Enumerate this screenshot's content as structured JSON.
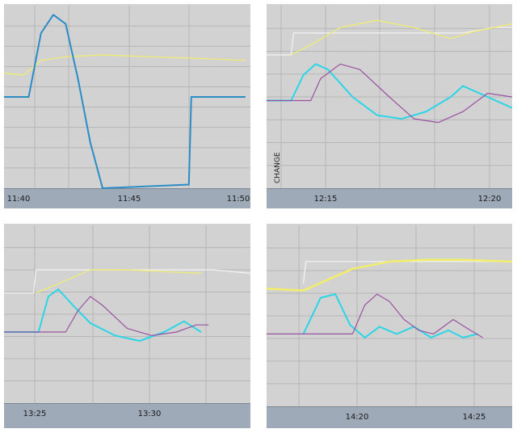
{
  "colors": {
    "background": "#d2d2d2",
    "grid": "#b6b6b6",
    "axis_bar": "#9eaab8",
    "white_trace": "#f4f4f4",
    "yellow_trace": "#f2ee6a",
    "cyan_trace": "#2ad6e6",
    "blue_trace": "#2b8cc6",
    "purple_trace": "#9a52a0"
  },
  "chart_data": [
    {
      "type": "line",
      "xlabel": "",
      "ylabel": "",
      "x_ticks": [
        "11:40",
        "11:45",
        "11:50"
      ],
      "xlim": [
        0,
        10
      ],
      "ylim": [
        0,
        100
      ],
      "grid": true,
      "series": [
        {
          "color": "yellow",
          "x": [
            0,
            0.8,
            1.5,
            2.5,
            4,
            6,
            8,
            9.8
          ],
          "y": [
            63,
            62,
            70,
            72,
            73,
            72,
            71,
            70
          ]
        },
        {
          "color": "blue",
          "x": [
            0,
            1,
            1.5,
            2,
            2.5,
            3,
            3.5,
            3.9,
            4,
            7.5,
            7.6,
            9.8
          ],
          "y": [
            50,
            50,
            85,
            95,
            90,
            60,
            25,
            5,
            0,
            2,
            50,
            50
          ]
        }
      ]
    },
    {
      "type": "line",
      "xlabel": "",
      "ylabel": "",
      "x_ticks": [
        "12:15",
        "12:20"
      ],
      "xlim": [
        0,
        10
      ],
      "ylim": [
        0,
        100
      ],
      "grid": true,
      "annotations": [
        "CHANGE"
      ],
      "series": [
        {
          "color": "white",
          "x": [
            0,
            1,
            1.1,
            8,
            9.2,
            10
          ],
          "y": [
            73,
            73,
            85,
            85,
            88,
            88
          ]
        },
        {
          "color": "yellow",
          "x": [
            1,
            2,
            3,
            4.5,
            6,
            7.5,
            8.5,
            10
          ],
          "y": [
            73,
            80,
            88,
            92,
            88,
            82,
            86,
            90
          ]
        },
        {
          "color": "cyan",
          "x": [
            0,
            1,
            1.5,
            2,
            2.5,
            3.5,
            4.5,
            5.5,
            6.5,
            7.5,
            8,
            9,
            10
          ],
          "y": [
            48,
            48,
            62,
            68,
            65,
            50,
            40,
            38,
            42,
            50,
            56,
            50,
            44
          ]
        },
        {
          "color": "purple",
          "x": [
            0,
            1.8,
            2.2,
            3,
            3.8,
            5,
            6,
            7,
            8,
            9,
            10
          ],
          "y": [
            48,
            48,
            60,
            68,
            65,
            50,
            38,
            36,
            42,
            52,
            50
          ]
        }
      ]
    },
    {
      "type": "line",
      "xlabel": "",
      "ylabel": "",
      "x_ticks": [
        "13:25",
        "13:30"
      ],
      "xlim": [
        0,
        10
      ],
      "ylim": [
        0,
        100
      ],
      "grid": true,
      "series": [
        {
          "color": "white",
          "x": [
            0,
            1.2,
            1.3,
            8.5,
            10
          ],
          "y": [
            62,
            62,
            75,
            75,
            73
          ]
        },
        {
          "color": "yellow",
          "x": [
            1.3,
            2,
            3.5,
            5,
            6.5,
            8
          ],
          "y": [
            62,
            66,
            75,
            75,
            74,
            73
          ]
        },
        {
          "color": "cyan",
          "x": [
            0,
            1.4,
            1.8,
            2.2,
            2.8,
            3.5,
            4.5,
            5.5,
            6.5,
            7.3,
            8
          ],
          "y": [
            40,
            40,
            60,
            64,
            55,
            45,
            38,
            35,
            40,
            46,
            40
          ]
        },
        {
          "color": "purple",
          "x": [
            0,
            2.5,
            3,
            3.5,
            4,
            5,
            6,
            7,
            7.8,
            8.3
          ],
          "y": [
            40,
            40,
            52,
            60,
            55,
            42,
            38,
            40,
            44,
            44
          ]
        }
      ]
    },
    {
      "type": "line",
      "xlabel": "",
      "ylabel": "",
      "x_ticks": [
        "14:20",
        "14:25"
      ],
      "xlim": [
        0,
        10
      ],
      "ylim": [
        0,
        100
      ],
      "grid": true,
      "series": [
        {
          "color": "white",
          "x": [
            1.5,
            1.6,
            10
          ],
          "y": [
            68,
            80,
            80
          ]
        },
        {
          "color": "yellow",
          "x": [
            0,
            1.5,
            2.5,
            3.5,
            5,
            6.5,
            8,
            10
          ],
          "y": [
            65,
            64,
            70,
            76,
            80,
            81,
            81,
            80
          ]
        },
        {
          "color": "cyan",
          "x": [
            1.5,
            2.2,
            2.8,
            3.4,
            4,
            4.6,
            5.3,
            6,
            6.7,
            7.4,
            8,
            8.6
          ],
          "y": [
            40,
            60,
            62,
            45,
            38,
            44,
            40,
            44,
            38,
            42,
            38,
            40
          ]
        },
        {
          "color": "purple",
          "x": [
            0,
            3.5,
            4,
            4.5,
            5,
            5.6,
            6.2,
            6.8,
            7.6,
            8.3,
            8.8
          ],
          "y": [
            40,
            40,
            56,
            62,
            58,
            48,
            42,
            40,
            48,
            42,
            38
          ]
        }
      ]
    }
  ]
}
